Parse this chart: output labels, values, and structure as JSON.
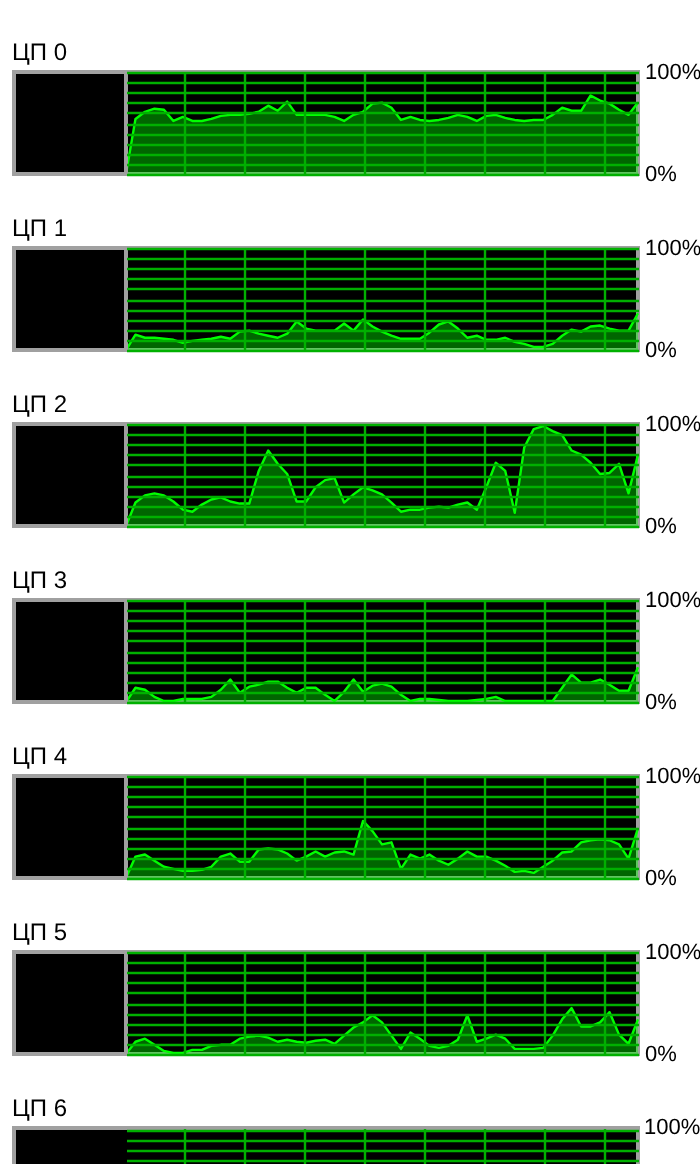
{
  "chart_data": [
    {
      "type": "area",
      "title": "ЦП 0",
      "categories": [
        null,
        null,
        null,
        null,
        null,
        null,
        null,
        null,
        null,
        null,
        null,
        null,
        null,
        null,
        null,
        null,
        null,
        null,
        null,
        null,
        null,
        null,
        null,
        null,
        null,
        null,
        null,
        null,
        null,
        null,
        null,
        null,
        null,
        null,
        null,
        null,
        null,
        null,
        null,
        null,
        null,
        null,
        null,
        null,
        null,
        null,
        null,
        null,
        null,
        null,
        null,
        null,
        null,
        null,
        null
      ],
      "color": "#00ff00",
      "values": [
        0,
        54,
        61,
        64,
        63,
        52,
        56,
        52,
        52,
        54,
        57,
        58,
        58,
        59,
        61,
        67,
        62,
        71,
        58,
        58,
        58,
        58,
        56,
        52,
        58,
        61,
        69,
        70,
        65,
        53,
        56,
        53,
        52,
        53,
        55,
        58,
        56,
        52,
        57,
        58,
        55,
        53,
        52,
        53,
        53,
        58,
        65,
        62,
        62,
        77,
        72,
        69,
        63,
        58,
        70
      ],
      "ylim": [
        0,
        100
      ],
      "yticks": [
        {
          "value": 0,
          "label": "0%"
        },
        {
          "value": 10,
          "label": null
        },
        {
          "value": 20,
          "label": null
        },
        {
          "value": 30,
          "label": null
        },
        {
          "value": 40,
          "label": null
        },
        {
          "value": 50,
          "label": null
        },
        {
          "value": 60,
          "label": null
        },
        {
          "value": 70,
          "label": null
        },
        {
          "value": 80,
          "label": null
        },
        {
          "value": 90,
          "label": null
        },
        {
          "value": 100,
          "label": "100%"
        }
      ],
      "grid": true,
      "tick_labels": "y"
    },
    {
      "type": "area",
      "title": "ЦП 1",
      "categories": [
        null,
        null,
        null,
        null,
        null,
        null,
        null,
        null,
        null,
        null,
        null,
        null,
        null,
        null,
        null,
        null,
        null,
        null,
        null,
        null,
        null,
        null,
        null,
        null,
        null,
        null,
        null,
        null,
        null,
        null,
        null,
        null,
        null,
        null,
        null,
        null,
        null,
        null,
        null,
        null,
        null,
        null,
        null,
        null,
        null,
        null,
        null,
        null,
        null,
        null,
        null,
        null,
        null,
        null,
        null
      ],
      "color": "#00ff00",
      "values": [
        0,
        15,
        12,
        12,
        11,
        10,
        7,
        9,
        10,
        11,
        13,
        11,
        18,
        19,
        16,
        14,
        12,
        16,
        28,
        21,
        19,
        19,
        19,
        26,
        19,
        30,
        23,
        18,
        14,
        11,
        11,
        11,
        17,
        25,
        28,
        21,
        12,
        14,
        10,
        10,
        12,
        8,
        6,
        3,
        3,
        6,
        14,
        20,
        18,
        23,
        24,
        21,
        19,
        19,
        36
      ],
      "ylim": [
        0,
        100
      ],
      "yticks": [
        {
          "value": 0,
          "label": "0%"
        },
        {
          "value": 10,
          "label": null
        },
        {
          "value": 20,
          "label": null
        },
        {
          "value": 30,
          "label": null
        },
        {
          "value": 40,
          "label": null
        },
        {
          "value": 50,
          "label": null
        },
        {
          "value": 60,
          "label": null
        },
        {
          "value": 70,
          "label": null
        },
        {
          "value": 80,
          "label": null
        },
        {
          "value": 90,
          "label": null
        },
        {
          "value": 100,
          "label": "100%"
        }
      ],
      "grid": true,
      "tick_labels": "y"
    },
    {
      "type": "area",
      "title": "ЦП 2",
      "categories": [
        null,
        null,
        null,
        null,
        null,
        null,
        null,
        null,
        null,
        null,
        null,
        null,
        null,
        null,
        null,
        null,
        null,
        null,
        null,
        null,
        null,
        null,
        null,
        null,
        null,
        null,
        null,
        null,
        null,
        null,
        null,
        null,
        null,
        null,
        null,
        null,
        null,
        null,
        null,
        null,
        null,
        null,
        null,
        null,
        null,
        null,
        null,
        null,
        null,
        null,
        null,
        null,
        null,
        null,
        null
      ],
      "color": "#00ff00",
      "values": [
        0,
        23,
        30,
        32,
        30,
        24,
        16,
        14,
        21,
        26,
        28,
        24,
        22,
        22,
        54,
        74,
        61,
        51,
        24,
        24,
        38,
        45,
        47,
        23,
        31,
        38,
        35,
        31,
        23,
        14,
        16,
        16,
        18,
        19,
        18,
        21,
        23,
        16,
        38,
        62,
        54,
        13,
        77,
        95,
        98,
        93,
        89,
        74,
        70,
        62,
        51,
        52,
        61,
        32,
        70
      ],
      "ylim": [
        0,
        100
      ],
      "yticks": [
        {
          "value": 0,
          "label": "0%"
        },
        {
          "value": 10,
          "label": null
        },
        {
          "value": 20,
          "label": null
        },
        {
          "value": 30,
          "label": null
        },
        {
          "value": 40,
          "label": null
        },
        {
          "value": 50,
          "label": null
        },
        {
          "value": 60,
          "label": null
        },
        {
          "value": 70,
          "label": null
        },
        {
          "value": 80,
          "label": null
        },
        {
          "value": 90,
          "label": null
        },
        {
          "value": 100,
          "label": "100%"
        }
      ],
      "grid": true,
      "tick_labels": "y"
    },
    {
      "type": "area",
      "title": "ЦП 3",
      "categories": [
        null,
        null,
        null,
        null,
        null,
        null,
        null,
        null,
        null,
        null,
        null,
        null,
        null,
        null,
        null,
        null,
        null,
        null,
        null,
        null,
        null,
        null,
        null,
        null,
        null,
        null,
        null,
        null,
        null,
        null,
        null,
        null,
        null,
        null,
        null,
        null,
        null,
        null,
        null,
        null,
        null,
        null,
        null,
        null,
        null,
        null,
        null,
        null,
        null,
        null,
        null,
        null,
        null,
        null,
        null
      ],
      "color": "#00ff00",
      "values": [
        0,
        14,
        12,
        5,
        1,
        1,
        3,
        3,
        3,
        5,
        12,
        22,
        9,
        15,
        17,
        20,
        20,
        14,
        9,
        14,
        14,
        7,
        1,
        10,
        22,
        10,
        16,
        18,
        15,
        7,
        1,
        3,
        3,
        2,
        1,
        1,
        1,
        2,
        3,
        5,
        1,
        1,
        1,
        1,
        1,
        1,
        14,
        27,
        19,
        19,
        22,
        17,
        11,
        11,
        34
      ],
      "ylim": [
        0,
        100
      ],
      "yticks": [
        {
          "value": 0,
          "label": "0%"
        },
        {
          "value": 10,
          "label": null
        },
        {
          "value": 20,
          "label": null
        },
        {
          "value": 30,
          "label": null
        },
        {
          "value": 40,
          "label": null
        },
        {
          "value": 50,
          "label": null
        },
        {
          "value": 60,
          "label": null
        },
        {
          "value": 70,
          "label": null
        },
        {
          "value": 80,
          "label": null
        },
        {
          "value": 90,
          "label": null
        },
        {
          "value": 100,
          "label": "100%"
        }
      ],
      "grid": true,
      "tick_labels": "y"
    },
    {
      "type": "area",
      "title": "ЦП 4",
      "categories": [
        null,
        null,
        null,
        null,
        null,
        null,
        null,
        null,
        null,
        null,
        null,
        null,
        null,
        null,
        null,
        null,
        null,
        null,
        null,
        null,
        null,
        null,
        null,
        null,
        null,
        null,
        null,
        null,
        null,
        null,
        null,
        null,
        null,
        null,
        null,
        null,
        null,
        null,
        null,
        null,
        null,
        null,
        null,
        null,
        null,
        null,
        null,
        null,
        null,
        null,
        null,
        null,
        null,
        null,
        null
      ],
      "color": "#00ff00",
      "values": [
        0,
        21,
        23,
        17,
        11,
        9,
        7,
        7,
        8,
        11,
        21,
        24,
        16,
        16,
        28,
        29,
        28,
        24,
        17,
        21,
        26,
        21,
        25,
        26,
        23,
        56,
        46,
        33,
        35,
        9,
        23,
        19,
        23,
        17,
        13,
        19,
        26,
        21,
        21,
        17,
        12,
        6,
        7,
        5,
        11,
        17,
        25,
        26,
        35,
        37,
        38,
        37,
        33,
        19,
        49
      ],
      "ylim": [
        0,
        100
      ],
      "yticks": [
        {
          "value": 0,
          "label": "0%"
        },
        {
          "value": 10,
          "label": null
        },
        {
          "value": 20,
          "label": null
        },
        {
          "value": 30,
          "label": null
        },
        {
          "value": 40,
          "label": null
        },
        {
          "value": 50,
          "label": null
        },
        {
          "value": 60,
          "label": null
        },
        {
          "value": 70,
          "label": null
        },
        {
          "value": 80,
          "label": null
        },
        {
          "value": 90,
          "label": null
        },
        {
          "value": 100,
          "label": "100%"
        }
      ],
      "grid": true,
      "tick_labels": "y"
    },
    {
      "type": "area",
      "title": "ЦП 5",
      "categories": [
        null,
        null,
        null,
        null,
        null,
        null,
        null,
        null,
        null,
        null,
        null,
        null,
        null,
        null,
        null,
        null,
        null,
        null,
        null,
        null,
        null,
        null,
        null,
        null,
        null,
        null,
        null,
        null,
        null,
        null,
        null,
        null,
        null,
        null,
        null,
        null,
        null,
        null,
        null,
        null,
        null,
        null,
        null,
        null,
        null,
        null,
        null,
        null,
        null,
        null,
        null,
        null,
        null,
        null,
        null
      ],
      "color": "#00ff00",
      "values": [
        0,
        12,
        15,
        9,
        3,
        1,
        1,
        4,
        4,
        8,
        9,
        9,
        15,
        17,
        18,
        16,
        12,
        14,
        12,
        11,
        13,
        14,
        10,
        18,
        26,
        31,
        38,
        31,
        18,
        5,
        21,
        15,
        8,
        6,
        8,
        14,
        38,
        12,
        15,
        19,
        15,
        5,
        5,
        5,
        6,
        18,
        34,
        45,
        27,
        27,
        31,
        41,
        19,
        10,
        34
      ],
      "ylim": [
        0,
        100
      ],
      "yticks": [
        {
          "value": 0,
          "label": "0%"
        },
        {
          "value": 10,
          "label": null
        },
        {
          "value": 20,
          "label": null
        },
        {
          "value": 30,
          "label": null
        },
        {
          "value": 40,
          "label": null
        },
        {
          "value": 50,
          "label": null
        },
        {
          "value": 60,
          "label": null
        },
        {
          "value": 70,
          "label": null
        },
        {
          "value": 80,
          "label": null
        },
        {
          "value": 90,
          "label": null
        },
        {
          "value": 100,
          "label": "100%"
        }
      ],
      "grid": true,
      "tick_labels": "y"
    },
    {
      "type": "other",
      "title": "ЦП 6",
      "annotations": [
        "100%"
      ]
    }
  ]
}
